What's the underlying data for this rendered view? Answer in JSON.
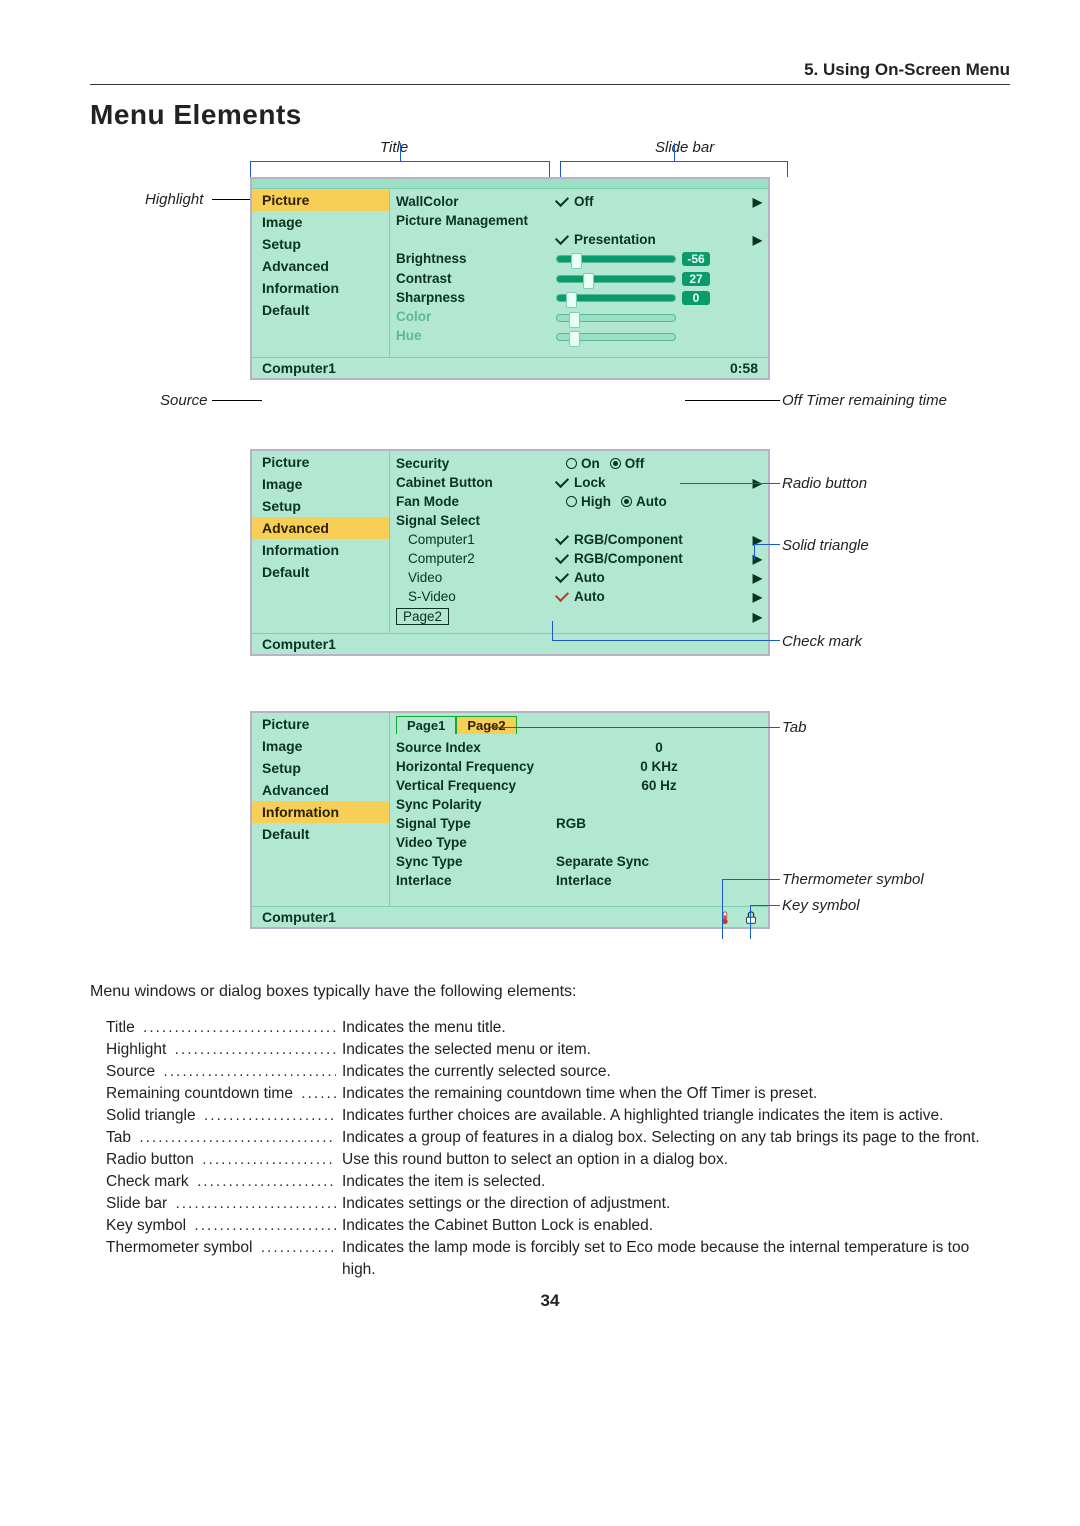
{
  "chapter": "5. Using On-Screen Menu",
  "heading": "Menu Elements",
  "labels": {
    "title": "Title",
    "slidebar": "Slide bar",
    "highlight": "Highlight",
    "source": "Source",
    "offtimer": "Off Timer remaining time",
    "radiobtn": "Radio button",
    "solidtri": "Solid triangle",
    "checkmark": "Check mark",
    "tab": "Tab",
    "thermo": "Thermometer symbol",
    "key": "Key symbol"
  },
  "colors": {
    "menu_bg": "#b2e7d2",
    "menu_bg_light": "#9be0c5",
    "highlight": "#f8cf56",
    "text": "#0a3322",
    "accent": "#0a9b6c",
    "callout_line": "#1a5bd0",
    "border": "#b9b2c4"
  },
  "win1": {
    "sidebar": [
      "Picture",
      "Image",
      "Setup",
      "Advanced",
      "Information",
      "Default"
    ],
    "highlight_index": 0,
    "rows": {
      "wallcolor_k": "WallColor",
      "wallcolor_v": "Off",
      "picmgmt": "Picture Management",
      "picmgmt_v": "Presentation",
      "brightness": "Brightness",
      "brightness_val": "-56",
      "contrast": "Contrast",
      "contrast_val": "27",
      "sharpness": "Sharpness",
      "sharpness_val": "0",
      "color": "Color",
      "hue": "Hue"
    },
    "slider": {
      "bright_pos": "12%",
      "contrast_pos": "22%",
      "sharp_pos": "8%",
      "width": 120
    },
    "status_source": "Computer1",
    "status_time": "0:58"
  },
  "win2": {
    "sidebar": [
      "Picture",
      "Image",
      "Setup",
      "Advanced",
      "Information",
      "Default"
    ],
    "highlight_index": 3,
    "rows": {
      "security": "Security",
      "on": "On",
      "off": "Off",
      "cabinet": "Cabinet Button",
      "lock": "Lock",
      "fan": "Fan Mode",
      "high": "High",
      "auto": "Auto",
      "sigsel": "Signal Select",
      "comp1": "Computer1",
      "comp1_v": "RGB/Component",
      "comp2": "Computer2",
      "comp2_v": "RGB/Component",
      "video": "Video",
      "video_v": "Auto",
      "svideo": "S-Video",
      "svideo_v": "Auto",
      "page2": "Page2"
    },
    "status_source": "Computer1"
  },
  "win3": {
    "sidebar": [
      "Picture",
      "Image",
      "Setup",
      "Advanced",
      "Information",
      "Default"
    ],
    "highlight_index": 4,
    "tabs": [
      "Page1",
      "Page2"
    ],
    "active_tab": 1,
    "rows": {
      "srcidx": "Source Index",
      "srcidx_v": "0",
      "hfreq": "Horizontal Frequency",
      "hfreq_v": "0 KHz",
      "vfreq": "Vertical Frequency",
      "vfreq_v": "60 Hz",
      "syncpol": "Sync Polarity",
      "sigtype": "Signal Type",
      "sigtype_v": "RGB",
      "vidtype": "Video Type",
      "synctype": "Sync Type",
      "synctype_v": "Separate Sync",
      "interlace": "Interlace",
      "interlace_v": "Interlace"
    },
    "status_source": "Computer1"
  },
  "intro_text": "Menu windows or dialog boxes typically have the following elements:",
  "defs": [
    {
      "term": "Title",
      "desc": "Indicates the menu title."
    },
    {
      "term": "Highlight",
      "desc": "Indicates the selected menu or item."
    },
    {
      "term": "Source",
      "desc": "Indicates the currently selected source."
    },
    {
      "term": "Remaining countdown time",
      "desc": "Indicates the remaining countdown time when the Off Timer is preset."
    },
    {
      "term": "Solid triangle",
      "desc": "Indicates further choices are available. A highlighted triangle indicates the item is active."
    },
    {
      "term": "Tab",
      "desc": "Indicates a group of features in a dialog box. Selecting on any tab brings its page to the front."
    },
    {
      "term": "Radio button",
      "desc": "Use this round button to select an option in a dialog box."
    },
    {
      "term": "Check mark",
      "desc": "Indicates the item is selected."
    },
    {
      "term": "Slide bar",
      "desc": "Indicates settings or the direction of adjustment."
    },
    {
      "term": "Key symbol",
      "desc": "Indicates the Cabinet Button Lock is enabled."
    },
    {
      "term": "Thermometer symbol",
      "desc": "Indicates the lamp mode is forcibly set to Eco mode because the internal temperature is too",
      "cont": "high."
    }
  ],
  "pagenum": "34"
}
